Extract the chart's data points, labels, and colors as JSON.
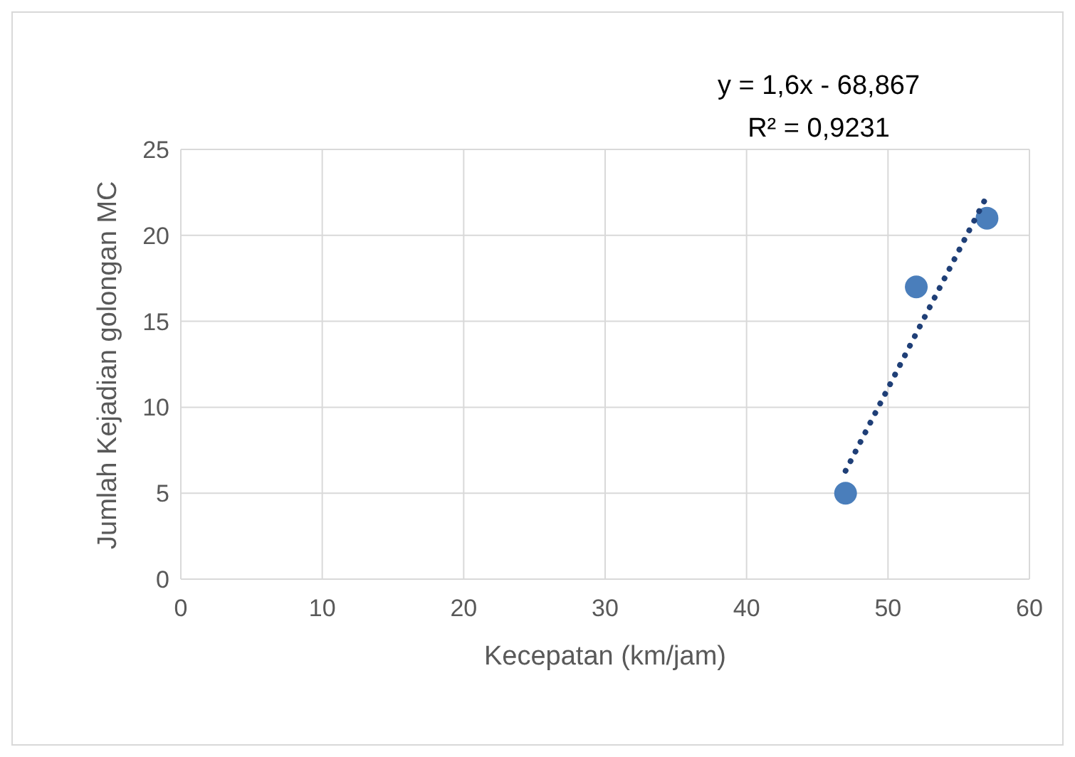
{
  "chart_data": {
    "type": "scatter",
    "xlabel": "Kecepatan (km/jam)",
    "ylabel": "Jumlah Kejadian golongan MC",
    "xlim": [
      0,
      60
    ],
    "xticks": [
      0,
      10,
      20,
      30,
      40,
      50,
      60
    ],
    "ylim": [
      0,
      25
    ],
    "yticks": [
      0,
      5,
      10,
      15,
      20,
      25
    ],
    "grid": true,
    "legend": false,
    "marker": "circle",
    "annotations": [
      "y = 1,6x - 68,867",
      "R² = 0,9231"
    ],
    "series": [
      {
        "color": "#4a7ebb",
        "x": [
          47,
          52,
          57
        ],
        "values": [
          5,
          17,
          21
        ]
      },
      {
        "type": "line",
        "color": "#1f3f77",
        "line_style": "dotted",
        "marker": "none",
        "x": [
          47,
          57
        ],
        "values": [
          6.3,
          22.3
        ]
      }
    ]
  }
}
